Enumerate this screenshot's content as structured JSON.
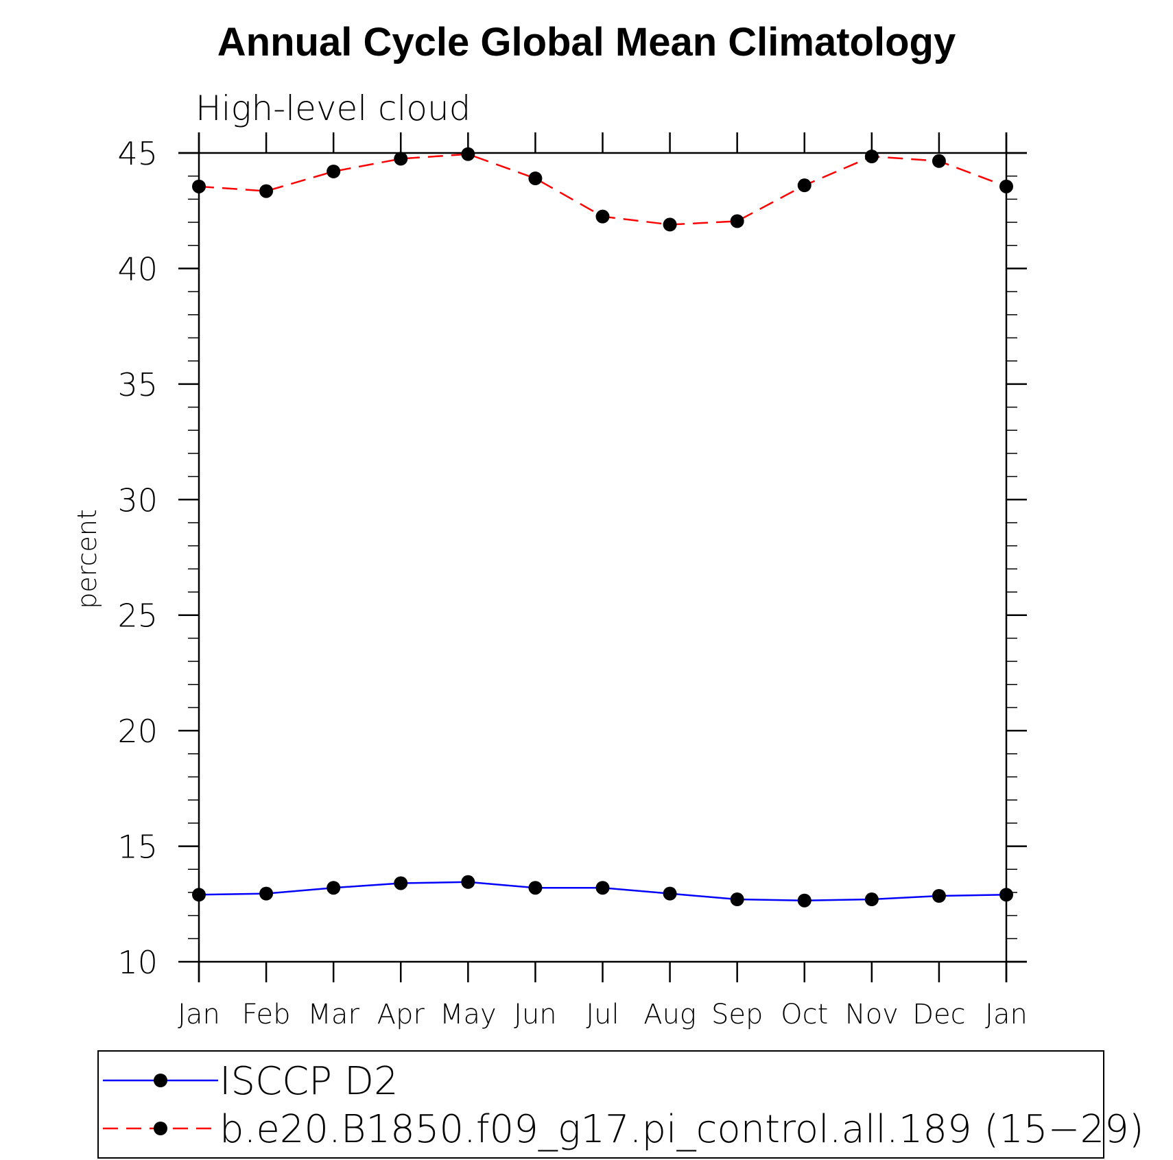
{
  "chart_data": {
    "type": "line",
    "title": "Annual Cycle Global Mean Climatology",
    "subtitle": "High-level cloud",
    "xlabel": "",
    "ylabel": "percent",
    "categories": [
      "Jan",
      "Feb",
      "Mar",
      "Apr",
      "May",
      "Jun",
      "Jul",
      "Aug",
      "Sep",
      "Oct",
      "Nov",
      "Dec",
      "Jan"
    ],
    "ylim": [
      10,
      45
    ],
    "yticks": [
      10,
      15,
      20,
      25,
      30,
      35,
      40,
      45
    ],
    "series": [
      {
        "name": "ISCCP D2",
        "color": "#0000ff",
        "dash": "solid",
        "values": [
          12.9,
          12.95,
          13.2,
          13.4,
          13.45,
          13.2,
          13.2,
          12.95,
          12.7,
          12.65,
          12.7,
          12.85,
          12.9
        ]
      },
      {
        "name": "b.e20.B1850.f09_g17.pi_control.all.189 (15−29)",
        "color": "#ff0000",
        "dash": "dashed",
        "values": [
          43.55,
          43.35,
          44.2,
          44.75,
          44.95,
          43.9,
          42.25,
          41.9,
          42.05,
          43.6,
          44.85,
          44.65,
          43.55
        ]
      }
    ],
    "legend": "bottom"
  }
}
